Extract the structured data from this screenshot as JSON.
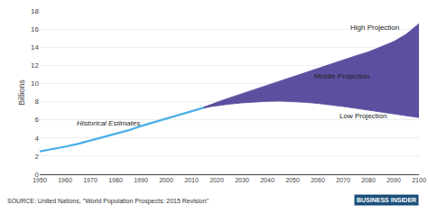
{
  "chart_data": {
    "type": "line",
    "y_label": "Billions",
    "series": [
      {
        "color": "#4aaee8",
        "type": "line",
        "x": [
          1950,
          1955,
          1960,
          1965,
          1970,
          1975,
          1980,
          1985,
          1990,
          1995,
          2000,
          2005,
          2010,
          2015
        ],
        "values": [
          2.53,
          2.77,
          3.03,
          3.34,
          3.7,
          4.07,
          4.43,
          4.83,
          5.31,
          5.72,
          6.09,
          6.51,
          6.92,
          7.35
        ]
      },
      {
        "color": "#5b4fa0",
        "type": "line",
        "x": [
          2015,
          2020,
          2025,
          2030,
          2035,
          2040,
          2045,
          2050,
          2055,
          2060,
          2065,
          2070,
          2075,
          2080,
          2085,
          2090,
          2095,
          2100
        ],
        "values": [
          7.35,
          7.79,
          8.19,
          8.55,
          8.89,
          9.2,
          9.48,
          9.73,
          9.96,
          10.15,
          10.32,
          10.46,
          10.58,
          10.67,
          10.74,
          10.79,
          10.87,
          11.21
        ]
      },
      {
        "color": "#5b4fa0",
        "type": "line",
        "x": [
          2015,
          2020,
          2025,
          2030,
          2035,
          2040,
          2045,
          2050,
          2055,
          2060,
          2065,
          2070,
          2075,
          2080,
          2085,
          2090,
          2095,
          2100
        ],
        "values": [
          7.35,
          7.93,
          8.41,
          8.88,
          9.35,
          9.82,
          10.29,
          10.76,
          11.23,
          11.7,
          12.16,
          12.61,
          13.05,
          13.48,
          14.02,
          14.61,
          15.44,
          16.59
        ]
      },
      {
        "color": "#5b4fa0",
        "type": "band",
        "x": [
          2015,
          2020,
          2025,
          2030,
          2035,
          2040,
          2045,
          2050,
          2055,
          2060,
          2065,
          2070,
          2075,
          2080,
          2085,
          2090,
          2095,
          2100
        ],
        "values": [
          7.35,
          7.55,
          7.72,
          7.86,
          7.97,
          8.03,
          8.06,
          8.01,
          7.92,
          7.8,
          7.65,
          7.47,
          7.27,
          7.06,
          6.84,
          6.62,
          6.42,
          6.24
        ]
      }
    ],
    "xlim": [
      1950,
      2100
    ],
    "xticks": [
      1950,
      1960,
      1970,
      1980,
      1990,
      2000,
      2010,
      2020,
      2030,
      2040,
      2050,
      2060,
      2070,
      2080,
      2090,
      2100
    ],
    "ylim": [
      0,
      18
    ],
    "yticks": [
      0,
      2,
      4,
      6,
      8,
      10,
      12,
      14,
      16,
      18
    ],
    "grid": true,
    "annotations": [
      {
        "text": "Historical Estimates",
        "x": 1964,
        "y": 5.0
      },
      {
        "text": "High Projection",
        "x": 2072,
        "y": 16.8
      },
      {
        "text": "Middle Projection",
        "x": 2058,
        "y": 10.8
      },
      {
        "text": "Low Projection",
        "x": 2068,
        "y": 7.05
      },
      {
        "text": "SOURCE: United Nations, \"World Population Prospects: 2015 Revision\""
      },
      {
        "text": "BUSINESS INSIDER"
      }
    ]
  }
}
